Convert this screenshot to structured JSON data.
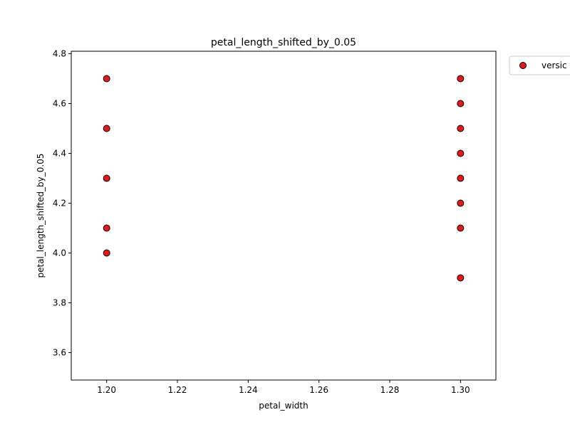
{
  "chart_data": {
    "type": "scatter",
    "title": "petal_length_shifted_by_0.05",
    "xlabel": "petal_width",
    "ylabel": "petal_length_shifted_by_0.05",
    "xlim": [
      1.19,
      1.31
    ],
    "ylim": [
      3.49,
      4.81
    ],
    "xticks": [
      "1.20",
      "1.22",
      "1.24",
      "1.26",
      "1.28",
      "1.30"
    ],
    "yticks": [
      "3.6",
      "3.8",
      "4.0",
      "4.2",
      "4.4",
      "4.6",
      "4.8"
    ],
    "grid": false,
    "legend_position": "outside-top-right",
    "series": [
      {
        "name": "versic",
        "color": "#e31a1c",
        "points": [
          {
            "x": 1.2,
            "y": 4.7
          },
          {
            "x": 1.2,
            "y": 4.5
          },
          {
            "x": 1.2,
            "y": 4.3
          },
          {
            "x": 1.2,
            "y": 4.1
          },
          {
            "x": 1.2,
            "y": 4.0
          },
          {
            "x": 1.3,
            "y": 4.7
          },
          {
            "x": 1.3,
            "y": 4.6
          },
          {
            "x": 1.3,
            "y": 4.5
          },
          {
            "x": 1.3,
            "y": 4.4
          },
          {
            "x": 1.3,
            "y": 4.3
          },
          {
            "x": 1.3,
            "y": 4.2
          },
          {
            "x": 1.3,
            "y": 4.1
          },
          {
            "x": 1.3,
            "y": 3.9
          }
        ]
      }
    ]
  }
}
